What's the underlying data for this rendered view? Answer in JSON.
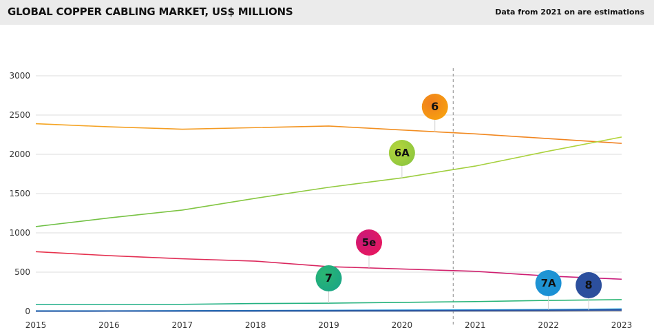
{
  "header": {
    "title": "GLOBAL COPPER CABLING MARKET, US$ MILLIONS",
    "note": "Data from 2021 on are estimations"
  },
  "chart_data": {
    "type": "line",
    "x": [
      "2015",
      "2016",
      "2017",
      "2018",
      "2019",
      "2020",
      "2021",
      "2022",
      "2023"
    ],
    "ylim": [
      0,
      3000
    ],
    "yticks": [
      0,
      500,
      1000,
      1500,
      2000,
      2500,
      3000
    ],
    "grid": true,
    "estimate_from": "2021",
    "series": [
      {
        "name": "6",
        "color": "#f5a623",
        "color_end": "#f07f1f",
        "values": [
          2390,
          2350,
          2320,
          2340,
          2360,
          2310,
          2260,
          2200,
          2140
        ],
        "label_x": 2020.45,
        "label_color": "#f7a10f",
        "text_color": "#111111"
      },
      {
        "name": "6A",
        "color": "#6cbf45",
        "color_end": "#b6d53c",
        "values": [
          1080,
          1190,
          1290,
          1440,
          1580,
          1700,
          1850,
          2040,
          2220
        ],
        "label_x": 2020.0,
        "label_color": "#8cc63f",
        "text_color": "#111111"
      },
      {
        "name": "5e",
        "color": "#e8334a",
        "color_end": "#c8197a",
        "values": [
          760,
          710,
          670,
          640,
          570,
          540,
          510,
          450,
          410
        ],
        "label_x": 2019.55,
        "label_color": "#e8175d",
        "text_color": "#111111"
      },
      {
        "name": "7",
        "color": "#1fae8a",
        "color_end": "#2bb673",
        "values": [
          90,
          90,
          90,
          100,
          105,
          115,
          125,
          140,
          150
        ],
        "label_x": 2019.0,
        "label_color": "#1aa685",
        "text_color": "#111111"
      },
      {
        "name": "7A",
        "color": "#1e90d6",
        "color_end": "#2196d3",
        "values": [
          5,
          6,
          8,
          10,
          12,
          15,
          18,
          22,
          30
        ],
        "label_x": 2022.0,
        "label_color": "#1a8fd4",
        "text_color": "#111111"
      },
      {
        "name": "8",
        "color": "#2a5ea8",
        "color_end": "#2b4f9e",
        "values": [
          3,
          4,
          5,
          6,
          7,
          8,
          10,
          13,
          18
        ],
        "label_x": 2022.55,
        "label_color": "#2c4f9c",
        "text_color": "#ffffff"
      }
    ]
  }
}
